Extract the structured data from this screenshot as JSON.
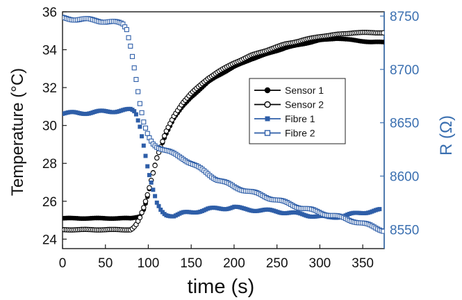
{
  "chart_data": {
    "type": "line",
    "xlabel": "time (s)",
    "ylabel": "Temperature (°C)",
    "y2label": "R (Ω)",
    "xlim": [
      0,
      375
    ],
    "ylim": [
      23.5,
      36
    ],
    "y2lim": [
      8532,
      8754
    ],
    "xticks": [
      0,
      50,
      100,
      150,
      200,
      250,
      300,
      350
    ],
    "yticks": [
      24,
      26,
      28,
      30,
      32,
      34,
      36
    ],
    "y2ticks": [
      8550,
      8600,
      8650,
      8700,
      8750
    ],
    "grid": false,
    "legend_position": "center-right",
    "right_axis_color": "#3a6fb0",
    "series": [
      {
        "name": "Sensor 1",
        "axis": "left",
        "marker": "filled-circle",
        "color": "#000000",
        "x": [
          0,
          20,
          40,
          60,
          80,
          90,
          95,
          100,
          105,
          110,
          120,
          130,
          140,
          150,
          160,
          170,
          180,
          200,
          220,
          240,
          260,
          280,
          300,
          320,
          340,
          360,
          375
        ],
        "y": [
          25.1,
          25.1,
          25.1,
          25.1,
          25.1,
          25.2,
          25.6,
          26.4,
          27.4,
          28.3,
          29.5,
          30.4,
          31.0,
          31.5,
          31.9,
          32.3,
          32.6,
          33.1,
          33.5,
          33.8,
          34.1,
          34.3,
          34.5,
          34.6,
          34.5,
          34.4,
          34.4
        ]
      },
      {
        "name": "Sensor 2",
        "axis": "left",
        "marker": "open-circle",
        "color": "#000000",
        "x": [
          0,
          20,
          40,
          60,
          80,
          85,
          90,
          95,
          100,
          105,
          110,
          120,
          130,
          140,
          150,
          160,
          170,
          180,
          200,
          220,
          240,
          260,
          280,
          300,
          320,
          340,
          360,
          375
        ],
        "y": [
          24.5,
          24.5,
          24.5,
          24.5,
          24.5,
          24.7,
          25.1,
          25.7,
          26.5,
          27.4,
          28.3,
          29.6,
          30.5,
          31.2,
          31.7,
          32.1,
          32.5,
          32.8,
          33.3,
          33.7,
          34.0,
          34.3,
          34.5,
          34.7,
          34.8,
          34.9,
          34.9,
          34.9
        ]
      },
      {
        "name": "Fibre 1",
        "axis": "right",
        "marker": "filled-square",
        "color": "#2e5ea8",
        "x": [
          0,
          20,
          40,
          60,
          80,
          85,
          90,
          95,
          100,
          105,
          110,
          115,
          120,
          130,
          140,
          150,
          170,
          190,
          200,
          210,
          230,
          250,
          270,
          290,
          310,
          330,
          350,
          370
        ],
        "y": [
          8659,
          8659,
          8660,
          8661,
          8662,
          8660,
          8648,
          8628,
          8605,
          8588,
          8574,
          8567,
          8564,
          8563,
          8565,
          8566,
          8569,
          8570,
          8571,
          8569,
          8568,
          8567,
          8565,
          8563,
          8561,
          8563,
          8566,
          8568
        ]
      },
      {
        "name": "Fibre 2",
        "axis": "right",
        "marker": "open-square",
        "color": "#2e5ea8",
        "x": [
          0,
          20,
          40,
          60,
          70,
          75,
          80,
          85,
          90,
          95,
          100,
          105,
          110,
          120,
          140,
          160,
          180,
          200,
          220,
          240,
          260,
          280,
          300,
          320,
          340,
          360,
          375
        ],
        "y": [
          8748,
          8747,
          8746,
          8744,
          8743,
          8738,
          8720,
          8695,
          8668,
          8648,
          8637,
          8631,
          8628,
          8624,
          8617,
          8607,
          8597,
          8590,
          8585,
          8580,
          8575,
          8570,
          8566,
          8562,
          8558,
          8553,
          8549
        ]
      }
    ]
  }
}
